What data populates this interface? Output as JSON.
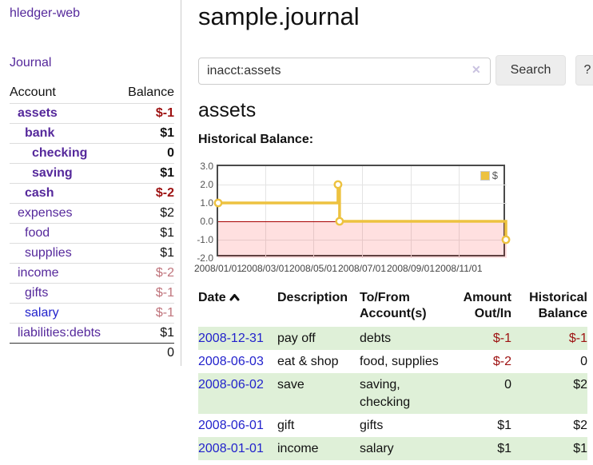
{
  "colors": {
    "link_purple": "#55289b",
    "link_blue": "#2222cc",
    "negative_strong": "#9d1111",
    "negative_muted": "#bf737b",
    "row_shade_green": "#dff0d8",
    "series_gold": "#edc240",
    "zero_line_red": "#a80000",
    "negative_region_pink": "rgba(255,0,0,0.12)",
    "chart_border": "#4a4a4a",
    "button_gray": "#ededed"
  },
  "sidebar": {
    "brand": "hledger-web",
    "journal_link": "Journal",
    "table": {
      "account_header": "Account",
      "balance_header": "Balance",
      "items": [
        {
          "name": "assets",
          "indent": 1,
          "bold": true,
          "balance": "$-1",
          "neg": "strong",
          "link": "purple"
        },
        {
          "name": "bank",
          "indent": 2,
          "bold": true,
          "balance": "$1",
          "neg": "none",
          "link": "purple"
        },
        {
          "name": "checking",
          "indent": 3,
          "bold": true,
          "balance": "0",
          "neg": "none",
          "link": "purple"
        },
        {
          "name": "saving",
          "indent": 3,
          "bold": true,
          "balance": "$1",
          "neg": "none",
          "link": "purple"
        },
        {
          "name": "cash",
          "indent": 2,
          "bold": true,
          "balance": "$-2",
          "neg": "strong",
          "link": "purple"
        },
        {
          "name": "expenses",
          "indent": 1,
          "bold": false,
          "balance": "$2",
          "neg": "none",
          "link": "purple"
        },
        {
          "name": "food",
          "indent": 2,
          "bold": false,
          "balance": "$1",
          "neg": "none",
          "link": "purple"
        },
        {
          "name": "supplies",
          "indent": 2,
          "bold": false,
          "balance": "$1",
          "neg": "none",
          "link": "purple"
        },
        {
          "name": "income",
          "indent": 1,
          "bold": false,
          "balance": "$-2",
          "neg": "muted",
          "link": "purple"
        },
        {
          "name": "gifts",
          "indent": 2,
          "bold": false,
          "balance": "$-1",
          "neg": "muted",
          "link": "purple"
        },
        {
          "name": "salary",
          "indent": 2,
          "bold": false,
          "balance": "$-1",
          "neg": "muted",
          "link": "blue"
        },
        {
          "name": "liabilities:debts",
          "indent": 1,
          "bold": false,
          "balance": "$1",
          "neg": "none",
          "link": "purple"
        }
      ],
      "total": "0"
    }
  },
  "main": {
    "title": "sample.journal",
    "search": {
      "value": "inacct:assets",
      "clear_icon": "✕",
      "button_label": "Search",
      "help_label": "?"
    },
    "account_heading": "assets",
    "chart_label": "Historical Balance:",
    "register": {
      "headers": {
        "date": "Date",
        "description": "Description",
        "tofrom": "To/From\nAccount(s)",
        "amount": "Amount\nOut/In",
        "balance": "Historical\nBalance"
      },
      "rows": [
        {
          "date": "2008-12-31",
          "description": "pay off",
          "accounts": "debts",
          "amount": "$-1",
          "amount_neg": true,
          "balance": "$-1",
          "balance_neg": true,
          "shaded": true
        },
        {
          "date": "2008-06-03",
          "description": "eat & shop",
          "accounts": "food, supplies",
          "amount": "$-2",
          "amount_neg": true,
          "balance": "0",
          "balance_neg": false,
          "shaded": false
        },
        {
          "date": "2008-06-02",
          "description": "save",
          "accounts": "saving, checking",
          "amount": "0",
          "amount_neg": false,
          "balance": "$2",
          "balance_neg": false,
          "shaded": true
        },
        {
          "date": "2008-06-01",
          "description": "gift",
          "accounts": "gifts",
          "amount": "$1",
          "amount_neg": false,
          "balance": "$2",
          "balance_neg": false,
          "shaded": false
        },
        {
          "date": "2008-01-01",
          "description": "income",
          "accounts": "salary",
          "amount": "$1",
          "amount_neg": false,
          "balance": "$1",
          "balance_neg": false,
          "shaded": true
        }
      ]
    }
  },
  "chart_data": {
    "type": "line",
    "step": true,
    "title": "Historical Balance:",
    "series": [
      {
        "name": "$",
        "color": "#edc240",
        "points": [
          {
            "date": "2008-01-01",
            "day": 0,
            "value": 1
          },
          {
            "date": "2008-06-01",
            "day": 152,
            "value": 2
          },
          {
            "date": "2008-06-03",
            "day": 154,
            "value": 0
          },
          {
            "date": "2008-12-31",
            "day": 365,
            "value": -1
          }
        ]
      }
    ],
    "ylim": [
      -2,
      3
    ],
    "yticks": [
      {
        "label": "3.0",
        "value": 3
      },
      {
        "label": "2.0",
        "value": 2
      },
      {
        "label": "1.0",
        "value": 1
      },
      {
        "label": "0.0",
        "value": 0
      },
      {
        "label": "-1.0",
        "value": -1
      },
      {
        "label": "-2.0",
        "value": -2
      }
    ],
    "xticks": [
      {
        "label": "2008/01/01",
        "day": 0
      },
      {
        "label": "2008/03/01",
        "day": 60
      },
      {
        "label": "2008/05/01",
        "day": 121
      },
      {
        "label": "2008/07/01",
        "day": 182
      },
      {
        "label": "2008/09/01",
        "day": 244
      },
      {
        "label": "2008/11/01",
        "day": 305
      }
    ],
    "x_range_days": 366,
    "grid": true,
    "legend_position": "top-right",
    "negative_region_shaded": true
  }
}
